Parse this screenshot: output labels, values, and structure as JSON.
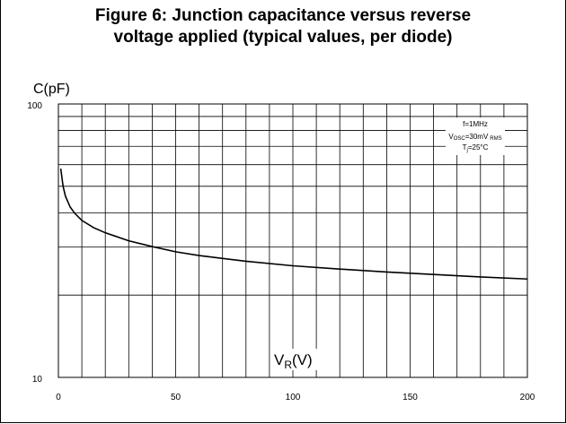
{
  "figure": {
    "title_line1": "Figure 6: Junction capacitance versus reverse",
    "title_line2": "voltage applied (typical values, per diode)"
  },
  "chart_data": {
    "type": "line",
    "ylabel": "C(pF)",
    "xlabel_main": "V",
    "xlabel_sub": "R",
    "xlabel_unit": "(V)",
    "xlim": [
      0,
      200
    ],
    "ylim": [
      10,
      100
    ],
    "y_scale": "log",
    "grid": true,
    "x_ticks": [
      0,
      50,
      100,
      150,
      200
    ],
    "y_tick_labels": [
      "100",
      "10"
    ],
    "annotations": [
      {
        "text": "f=1MHz"
      },
      {
        "text_main": "V",
        "text_sub": "OSC",
        "text_rest": "=30mV",
        "text_sub2": "RMS"
      },
      {
        "text_main": "T",
        "text_sub": "j",
        "text_rest": "=25°C"
      }
    ],
    "series": [
      {
        "x": [
          1,
          2,
          3,
          5,
          7,
          10,
          15,
          20,
          30,
          40,
          50,
          60,
          80,
          100,
          120,
          140,
          160,
          180,
          200
        ],
        "y": [
          58,
          50,
          46,
          42,
          39.8,
          37.5,
          35.3,
          33.8,
          31.6,
          30.1,
          28.8,
          27.9,
          26.6,
          25.6,
          24.9,
          24.3,
          23.8,
          23.3,
          22.9
        ]
      }
    ]
  }
}
